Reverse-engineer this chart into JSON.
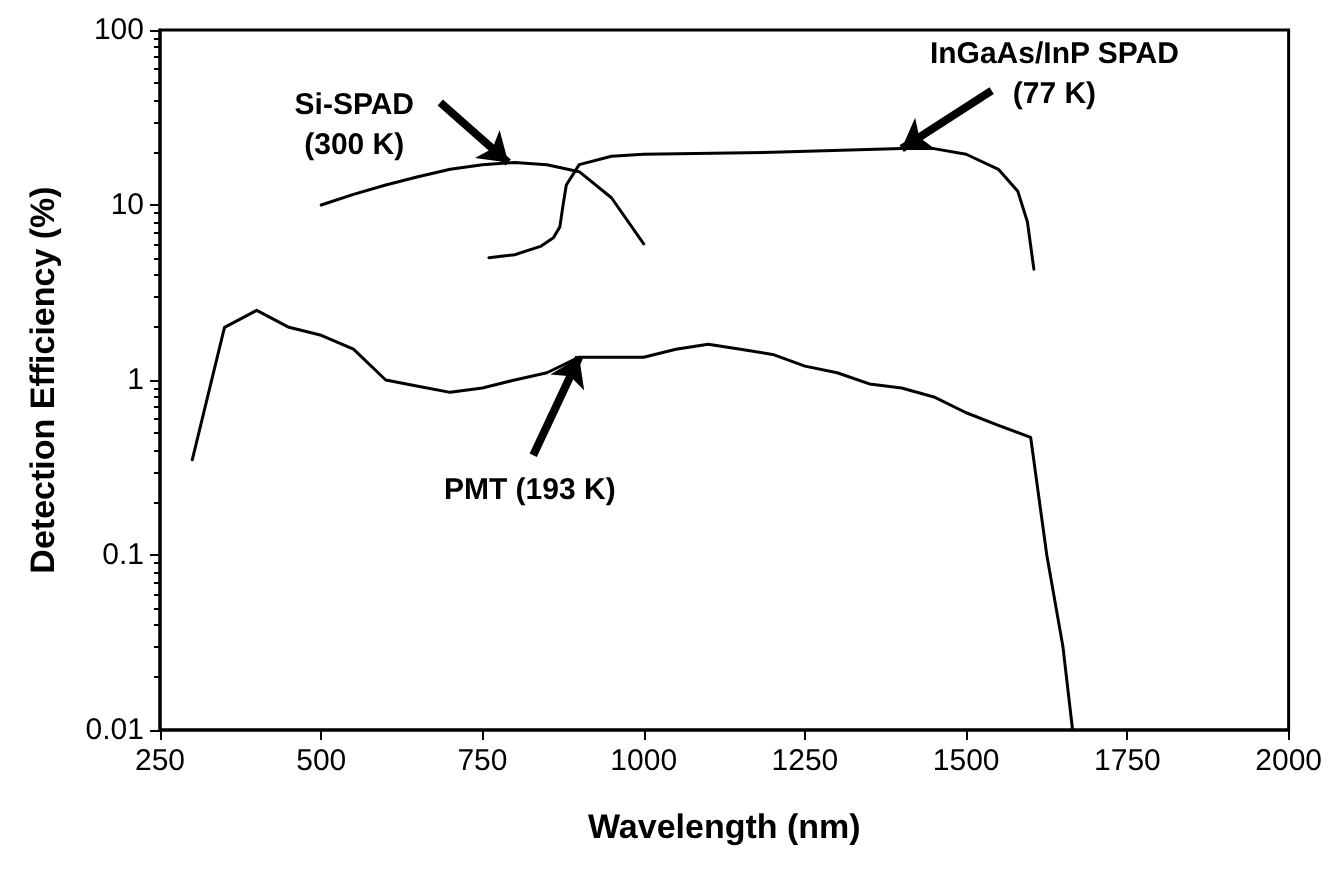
{
  "chart_data": {
    "type": "line",
    "xlabel": "Wavelength (nm)",
    "ylabel": "Detection Efficiency (%)",
    "log": "y",
    "xlim": [
      250,
      2000
    ],
    "xticks": [
      250,
      500,
      750,
      1000,
      1250,
      1500,
      1750,
      2000
    ],
    "ylim": [
      0.01,
      100
    ],
    "yticks": [
      0.01,
      0.1,
      1,
      10,
      100
    ],
    "grid": false,
    "marker": "none",
    "line_style": "solid",
    "series": [
      {
        "color": "#000000",
        "x": [
          500,
          550,
          600,
          650,
          700,
          750,
          800,
          850,
          900,
          950,
          1000
        ],
        "values": [
          10,
          11.5,
          13,
          14.5,
          16,
          17,
          17.5,
          17,
          15.5,
          11,
          6
        ]
      },
      {
        "color": "#000000",
        "x": [
          760,
          800,
          840,
          860,
          870,
          875,
          880,
          900,
          950,
          1000,
          1200,
          1400,
          1450,
          1500,
          1550,
          1580,
          1595,
          1605
        ],
        "values": [
          5,
          5.2,
          5.8,
          6.5,
          7.5,
          10,
          13,
          17,
          19,
          19.5,
          20,
          21,
          21,
          19.5,
          16,
          12,
          8,
          4.3
        ]
      },
      {
        "color": "#000000",
        "x": [
          300,
          350,
          400,
          450,
          500,
          550,
          600,
          650,
          700,
          750,
          800,
          850,
          900,
          1000,
          1050,
          1100,
          1150,
          1200,
          1250,
          1300,
          1350,
          1400,
          1450,
          1500,
          1550,
          1600,
          1625,
          1650,
          1665
        ],
        "values": [
          0.35,
          2,
          2.5,
          2,
          1.8,
          1.5,
          1,
          0.92,
          0.85,
          0.9,
          1,
          1.1,
          1.35,
          1.35,
          1.5,
          1.6,
          1.5,
          1.4,
          1.2,
          1.1,
          0.95,
          0.9,
          0.8,
          0.65,
          0.55,
          0.47,
          0.1,
          0.03,
          0.01
        ]
      }
    ],
    "annotations": [
      {
        "text": "Si-SPAD\n(300 K)",
        "x": 790,
        "y": 17.5
      },
      {
        "text": "InGaAs/InP SPAD\n(77 K)",
        "x": 1400,
        "y": 21
      },
      {
        "text": "PMT (193 K)",
        "x": 900,
        "y": 1.35
      }
    ]
  }
}
